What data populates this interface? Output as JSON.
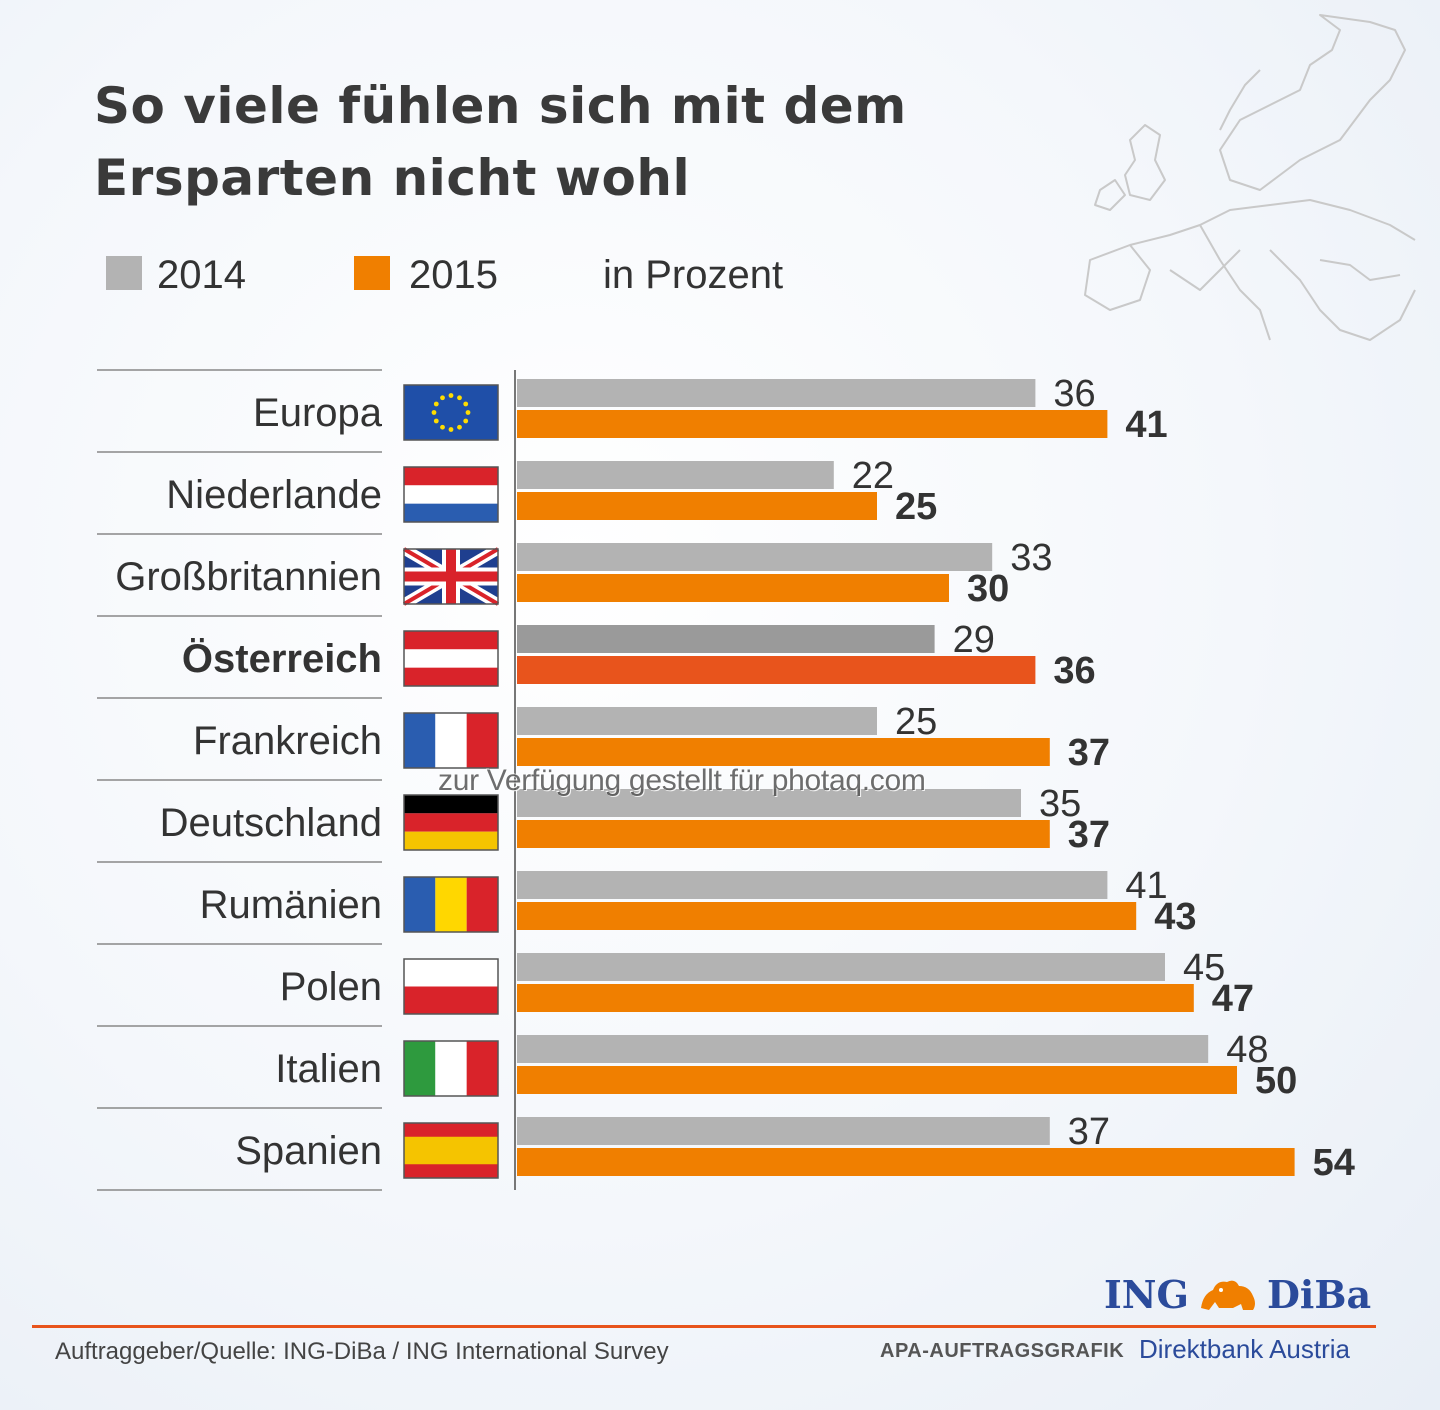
{
  "title": [
    "So viele fühlen sich mit dem",
    "Ersparten nicht wohl"
  ],
  "legend": {
    "items": [
      {
        "label": "2014",
        "color": "#b3b3b3"
      },
      {
        "label": "2015",
        "color": "#f07f00"
      }
    ],
    "unit": "in Prozent"
  },
  "chart_data": {
    "type": "bar",
    "orientation": "horizontal",
    "unit": "in Prozent",
    "categories": [
      "Europa",
      "Niederlande",
      "Großbritannien",
      "Österreich",
      "Frankreich",
      "Deutschland",
      "Rumänien",
      "Polen",
      "Italien",
      "Spanien"
    ],
    "highlighted_category": "Österreich",
    "series": [
      {
        "name": "2014",
        "color": "#b3b3b3",
        "highlight_color": "#9a9a9a",
        "values": [
          36,
          22,
          33,
          29,
          25,
          35,
          41,
          45,
          48,
          37
        ]
      },
      {
        "name": "2015",
        "color": "#f07f00",
        "highlight_color": "#e8541c",
        "values": [
          41,
          25,
          30,
          36,
          37,
          37,
          43,
          47,
          50,
          54
        ]
      }
    ],
    "flags": [
      "eu-flag-icon",
      "netherlands-flag-icon",
      "uk-flag-icon",
      "austria-flag-icon",
      "france-flag-icon",
      "germany-flag-icon",
      "romania-flag-icon",
      "poland-flag-icon",
      "italy-flag-icon",
      "spain-flag-icon"
    ],
    "xlim": [
      0,
      60
    ],
    "grid": false
  },
  "watermark": "zur Verfügung gestellt für photaq.com",
  "footer": {
    "source": "Auftraggeber/Quelle: ING-DiBa / ING International Survey",
    "apa": "APA-AUFTRAGSGRAFIK",
    "brand_left": "ING",
    "brand_right": "DiBa",
    "brand_sub": "Direktbank Austria",
    "brand_color": "#2b4b9b"
  }
}
